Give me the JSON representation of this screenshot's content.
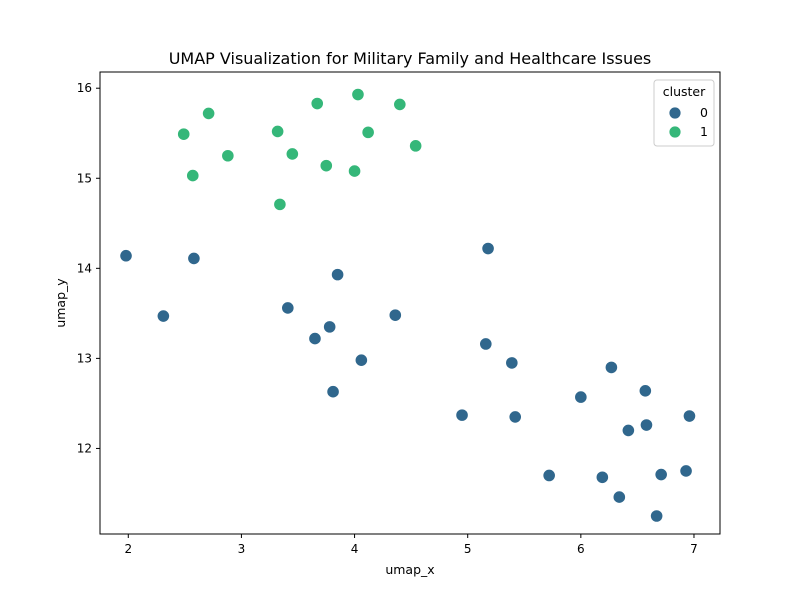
{
  "chart_data": {
    "type": "scatter",
    "title": "UMAP Visualization for Military Family and Healthcare Issues",
    "xlabel": "umap_x",
    "ylabel": "umap_y",
    "xlim": [
      1.75,
      7.23
    ],
    "ylim": [
      11.05,
      16.18
    ],
    "x_ticks": [
      2,
      3,
      4,
      5,
      6,
      7
    ],
    "y_ticks": [
      12,
      13,
      14,
      15,
      16
    ],
    "grid": false,
    "legend": {
      "title": "cluster",
      "placement": "top-right"
    },
    "series": [
      {
        "name": "0",
        "color": "#30678d",
        "points": [
          [
            1.98,
            14.14
          ],
          [
            2.31,
            13.47
          ],
          [
            2.58,
            14.11
          ],
          [
            3.41,
            13.56
          ],
          [
            3.65,
            13.22
          ],
          [
            3.78,
            13.35
          ],
          [
            3.81,
            12.63
          ],
          [
            3.85,
            13.93
          ],
          [
            4.06,
            12.98
          ],
          [
            4.36,
            13.48
          ],
          [
            4.95,
            12.37
          ],
          [
            5.16,
            13.16
          ],
          [
            5.18,
            14.22
          ],
          [
            5.39,
            12.95
          ],
          [
            5.42,
            12.35
          ],
          [
            5.72,
            11.7
          ],
          [
            6.0,
            12.57
          ],
          [
            6.19,
            11.68
          ],
          [
            6.27,
            12.9
          ],
          [
            6.34,
            11.46
          ],
          [
            6.42,
            12.2
          ],
          [
            6.57,
            12.64
          ],
          [
            6.58,
            12.26
          ],
          [
            6.67,
            11.25
          ],
          [
            6.71,
            11.71
          ],
          [
            6.93,
            11.75
          ],
          [
            6.96,
            12.36
          ]
        ]
      },
      {
        "name": "1",
        "color": "#35b779",
        "points": [
          [
            2.49,
            15.49
          ],
          [
            2.57,
            15.03
          ],
          [
            2.71,
            15.72
          ],
          [
            2.88,
            15.25
          ],
          [
            3.32,
            15.52
          ],
          [
            3.34,
            14.71
          ],
          [
            3.45,
            15.27
          ],
          [
            3.67,
            15.83
          ],
          [
            3.75,
            15.14
          ],
          [
            4.0,
            15.08
          ],
          [
            4.03,
            15.93
          ],
          [
            4.12,
            15.51
          ],
          [
            4.4,
            15.82
          ],
          [
            4.54,
            15.36
          ]
        ]
      }
    ]
  }
}
